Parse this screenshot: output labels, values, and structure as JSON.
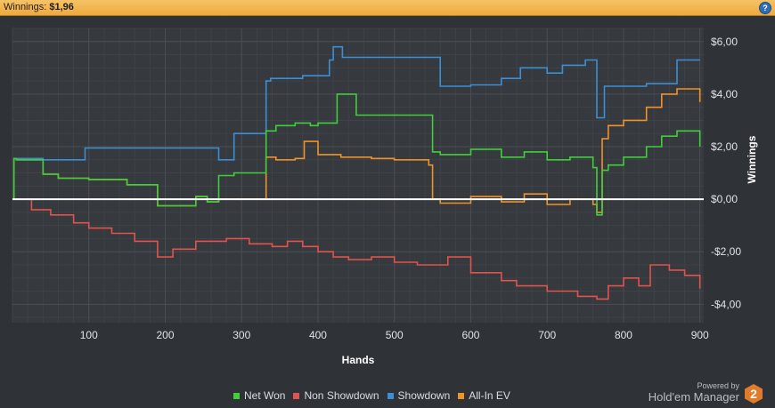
{
  "header": {
    "label": "Winnings:",
    "value": "$1,96"
  },
  "help_icon": "question-icon",
  "branding": {
    "powered": "Powered by",
    "name": "Hold'em Manager",
    "logo_number": "2",
    "logo_color": "#e07b2a"
  },
  "colors": {
    "background": "#2f3237",
    "plot_background": "#36393e",
    "grid": "#4a4e54",
    "zero_line": "#ffffff"
  },
  "chart_data": {
    "type": "line",
    "xlabel": "Hands",
    "ylabel": "Winnings",
    "xlim": [
      0,
      905
    ],
    "ylim": [
      -4.7,
      6.5
    ],
    "xticks": [
      100,
      200,
      300,
      400,
      500,
      600,
      700,
      800,
      900
    ],
    "xtick_labels": [
      "100",
      "200",
      "300",
      "400",
      "500",
      "600",
      "700",
      "800",
      "900"
    ],
    "yticks": [
      6,
      4,
      2,
      0,
      -2,
      -4
    ],
    "ytick_labels": [
      "$6,00",
      "$4,00",
      "$2,00",
      "$0,00",
      "-$2,00",
      "-$4,00"
    ],
    "grid": true,
    "legend_position": "bottom",
    "series": [
      {
        "name": "Showdown",
        "color": "#3b8fd6",
        "x": [
          0,
          2,
          5,
          40,
          60,
          95,
          180,
          270,
          290,
          330,
          332,
          338,
          380,
          400,
          415,
          420,
          432,
          540,
          560,
          600,
          640,
          665,
          700,
          720,
          750,
          765,
          768,
          775,
          830,
          870,
          900
        ],
        "y": [
          0,
          1.55,
          1.55,
          1.5,
          1.5,
          1.95,
          1.95,
          1.5,
          2.5,
          2.5,
          4.5,
          4.6,
          4.7,
          4.7,
          5.3,
          5.8,
          5.4,
          5.4,
          4.3,
          4.35,
          4.6,
          5.0,
          4.8,
          5.1,
          5.3,
          3.1,
          3.1,
          4.3,
          4.4,
          5.3,
          5.3
        ]
      },
      {
        "name": "All-In EV",
        "color": "#f0922a",
        "x": [
          0,
          2,
          5,
          40,
          60,
          100,
          150,
          190,
          240,
          255,
          270,
          290,
          330,
          332,
          345,
          370,
          382,
          400,
          430,
          470,
          500,
          545,
          550,
          560,
          600,
          640,
          670,
          700,
          730,
          760,
          765,
          772,
          780,
          800,
          830,
          850,
          870,
          900
        ],
        "y": [
          0,
          1.55,
          1.5,
          0.95,
          0.8,
          0.75,
          0.55,
          -0.25,
          0.1,
          -0.1,
          0,
          0,
          0,
          1.6,
          1.5,
          1.55,
          2.2,
          1.7,
          1.6,
          1.55,
          1.5,
          1.3,
          0,
          -0.15,
          0.1,
          -0.1,
          0.2,
          -0.2,
          0,
          -0.2,
          -0.5,
          2.3,
          2.8,
          3.0,
          3.5,
          4.0,
          4.2,
          3.7
        ]
      },
      {
        "name": "Net Won",
        "color": "#3fcf3a",
        "x": [
          0,
          2,
          5,
          40,
          60,
          100,
          150,
          190,
          240,
          255,
          270,
          290,
          330,
          332,
          345,
          370,
          390,
          400,
          425,
          450,
          500,
          545,
          550,
          560,
          600,
          640,
          670,
          700,
          730,
          760,
          765,
          772,
          780,
          800,
          830,
          850,
          870,
          900
        ],
        "y": [
          0,
          1.55,
          1.5,
          0.95,
          0.8,
          0.75,
          0.55,
          -0.25,
          0.1,
          -0.1,
          0.9,
          1.0,
          1.0,
          2.6,
          2.8,
          2.9,
          2.8,
          2.9,
          4.0,
          3.2,
          3.2,
          3.2,
          1.8,
          1.7,
          1.9,
          1.6,
          1.8,
          1.5,
          1.6,
          1.2,
          -0.6,
          1.1,
          1.3,
          1.6,
          2.0,
          2.4,
          2.6,
          2.0
        ]
      },
      {
        "name": "Non Showdown",
        "color": "#e0534f",
        "x": [
          0,
          15,
          25,
          50,
          80,
          100,
          130,
          160,
          190,
          210,
          240,
          280,
          310,
          340,
          360,
          380,
          400,
          420,
          440,
          470,
          500,
          530,
          570,
          600,
          640,
          660,
          700,
          740,
          765,
          780,
          800,
          820,
          835,
          860,
          880,
          900
        ],
        "y": [
          0,
          0,
          -0.4,
          -0.6,
          -0.9,
          -1.1,
          -1.3,
          -1.6,
          -2.2,
          -1.9,
          -1.6,
          -1.5,
          -1.7,
          -1.8,
          -1.6,
          -1.8,
          -2.0,
          -2.2,
          -2.3,
          -2.2,
          -2.4,
          -2.5,
          -2.2,
          -2.8,
          -3.1,
          -3.3,
          -3.5,
          -3.7,
          -3.8,
          -3.3,
          -3.0,
          -3.3,
          -2.5,
          -2.7,
          -2.9,
          -3.4
        ]
      }
    ],
    "legend_order": [
      "Net Won",
      "Non Showdown",
      "Showdown",
      "All-In EV"
    ]
  }
}
